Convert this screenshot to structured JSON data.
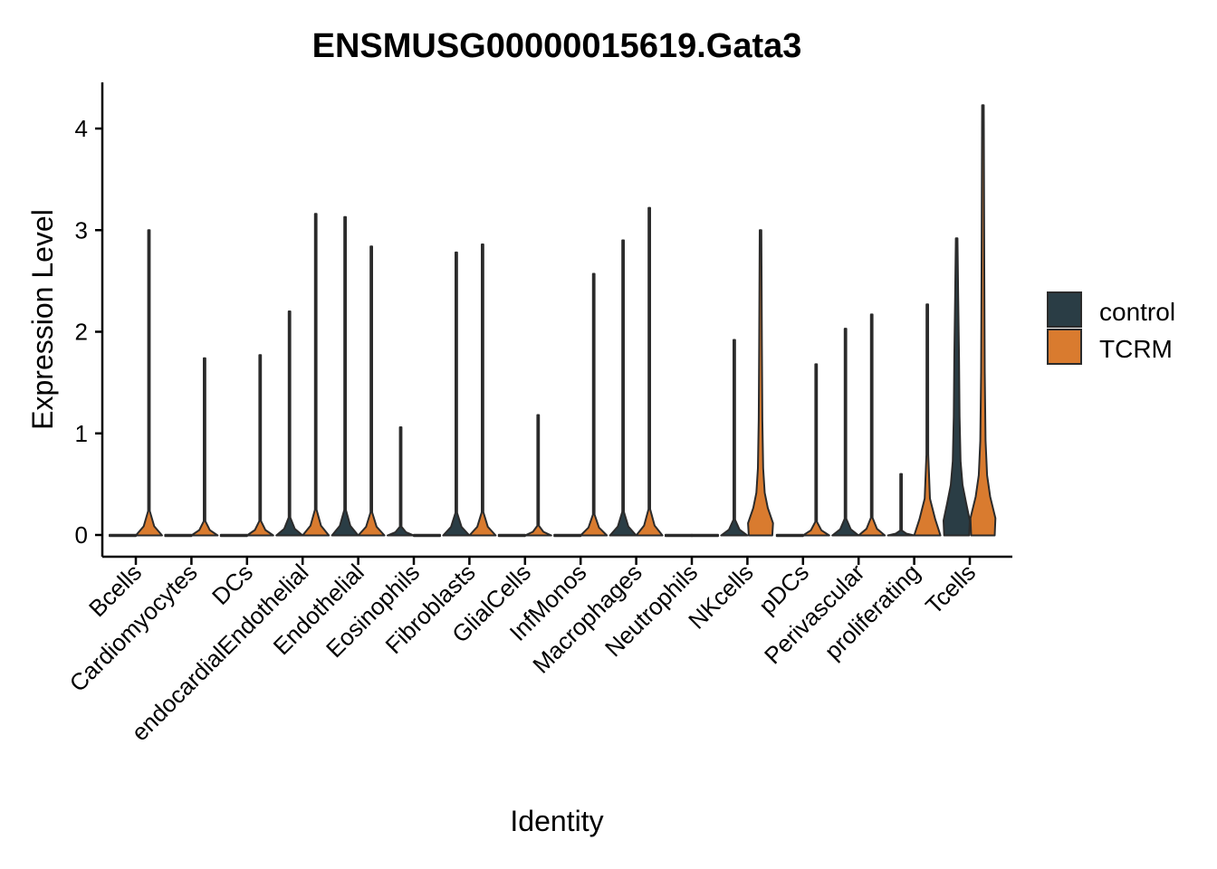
{
  "chart_data": {
    "type": "violin",
    "title": "ENSMUSG00000015619.Gata3",
    "xlabel": "Identity",
    "ylabel": "Expression Level",
    "ylim": [
      -0.2,
      4.45
    ],
    "yticks": [
      0,
      1,
      2,
      3,
      4
    ],
    "grid": false,
    "legend_position": "right",
    "categories": [
      "Bcells",
      "Cardiomyocytes",
      "DCs",
      "endocardialEndothelial",
      "Endothelial",
      "Eosinophils",
      "Fibroblasts",
      "GlialCells",
      "InfMonos",
      "Macrophages",
      "Neutrophils",
      "NKcells",
      "pDCs",
      "Perivascular",
      "proliferating",
      "Tcells"
    ],
    "series": [
      {
        "name": "control",
        "color": "#2a3d45",
        "max_values": [
          0,
          0,
          0,
          2.2,
          3.13,
          1.06,
          2.78,
          0,
          0,
          2.9,
          0,
          1.92,
          0,
          2.03,
          0.6,
          2.92
        ],
        "visible_mass": [
          "flat",
          "flat",
          "flat",
          "flat",
          "flat",
          "flat",
          "flat",
          "flat",
          "flat",
          "flat",
          "flat",
          "flat",
          "flat",
          "flat",
          "flat",
          "wide"
        ]
      },
      {
        "name": "TCRM",
        "color": "#d97b2f",
        "max_values": [
          3.0,
          1.74,
          1.77,
          3.16,
          2.84,
          0,
          2.86,
          1.18,
          2.57,
          3.22,
          0,
          3.0,
          1.68,
          2.17,
          2.27,
          4.23
        ],
        "visible_mass": [
          "flat",
          "flat",
          "flat",
          "flat",
          "flat",
          "flat",
          "flat",
          "flat",
          "flat",
          "flat",
          "flat",
          "medium",
          "flat",
          "flat",
          "small",
          "medium"
        ]
      }
    ]
  }
}
